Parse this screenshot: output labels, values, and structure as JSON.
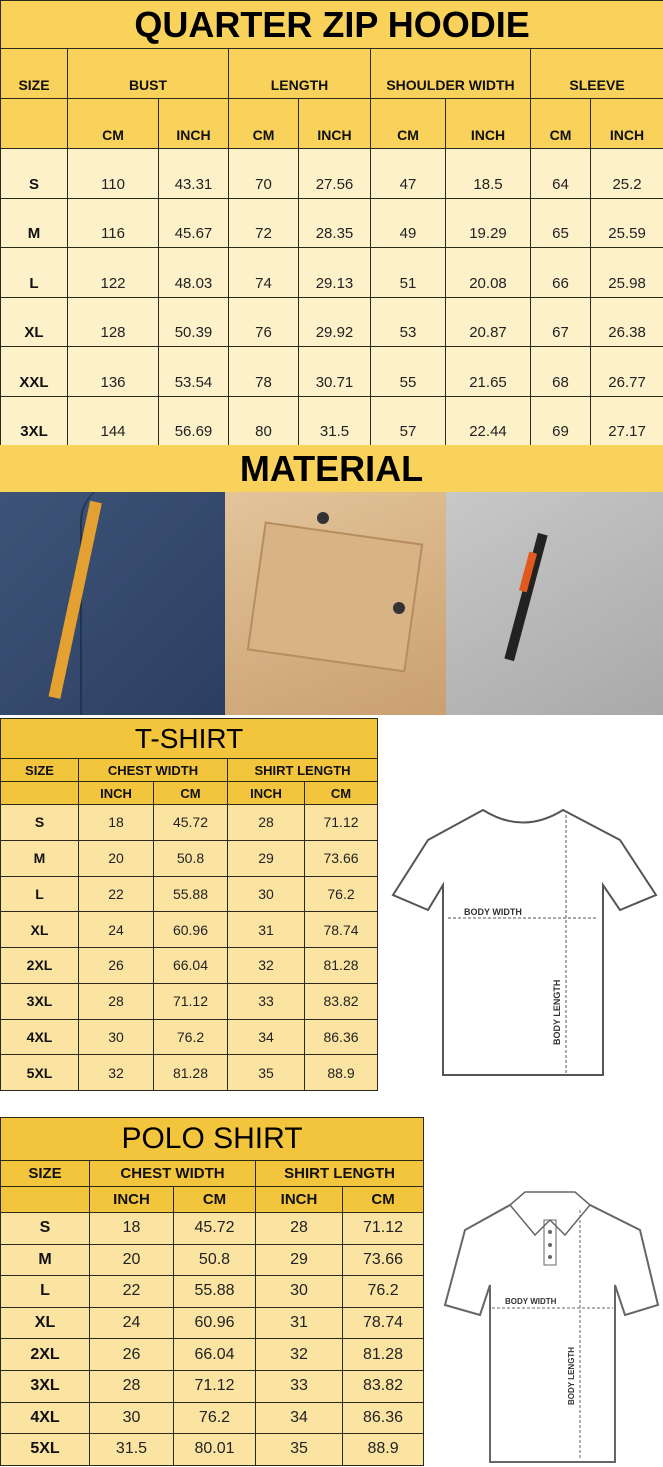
{
  "hoodie": {
    "title": "QUARTER ZIP HOODIE",
    "size_label": "SIZE",
    "groups": [
      "BUST",
      "LENGTH",
      "SHOULDER WIDTH",
      "SLEEVE"
    ],
    "units": [
      "CM",
      "INCH",
      "CM",
      "INCH",
      "CM",
      "INCH",
      "CM",
      "INCH"
    ],
    "rows": [
      [
        "S",
        "110",
        "43.31",
        "70",
        "27.56",
        "47",
        "18.5",
        "64",
        "25.2"
      ],
      [
        "M",
        "116",
        "45.67",
        "72",
        "28.35",
        "49",
        "19.29",
        "65",
        "25.59"
      ],
      [
        "L",
        "122",
        "48.03",
        "74",
        "29.13",
        "51",
        "20.08",
        "66",
        "25.98"
      ],
      [
        "XL",
        "128",
        "50.39",
        "76",
        "29.92",
        "53",
        "20.87",
        "67",
        "26.38"
      ],
      [
        "XXL",
        "136",
        "53.54",
        "78",
        "30.71",
        "55",
        "21.65",
        "68",
        "26.77"
      ],
      [
        "3XL",
        "144",
        "56.69",
        "80",
        "31.5",
        "57",
        "22.44",
        "69",
        "27.17"
      ]
    ]
  },
  "material": {
    "title": "MATERIAL",
    "photos": [
      "navy-fabric-with-orange-strap",
      "khaki-fabric-with-flap-pocket",
      "grey-fabric-with-zip-pocket"
    ]
  },
  "tshirt": {
    "title": "T-SHIRT",
    "size_label": "SIZE",
    "groups": [
      "CHEST WIDTH",
      "SHIRT LENGTH"
    ],
    "units": [
      "INCH",
      "CM",
      "INCH",
      "CM"
    ],
    "rows": [
      [
        "S",
        "18",
        "45.72",
        "28",
        "71.12"
      ],
      [
        "M",
        "20",
        "50.8",
        "29",
        "73.66"
      ],
      [
        "L",
        "22",
        "55.88",
        "30",
        "76.2"
      ],
      [
        "XL",
        "24",
        "60.96",
        "31",
        "78.74"
      ],
      [
        "2XL",
        "26",
        "66.04",
        "32",
        "81.28"
      ],
      [
        "3XL",
        "28",
        "71.12",
        "33",
        "83.82"
      ],
      [
        "4XL",
        "30",
        "76.2",
        "34",
        "86.36"
      ],
      [
        "5XL",
        "32",
        "81.28",
        "35",
        "88.9"
      ]
    ],
    "diagram": {
      "width_label": "BODY WIDTH",
      "length_label": "BODY LENGTH"
    }
  },
  "polo": {
    "title": "POLO SHIRT",
    "size_label": "SIZE",
    "groups": [
      "CHEST WIDTH",
      "SHIRT LENGTH"
    ],
    "units": [
      "INCH",
      "CM",
      "INCH",
      "CM"
    ],
    "rows": [
      [
        "S",
        "18",
        "45.72",
        "28",
        "71.12"
      ],
      [
        "M",
        "20",
        "50.8",
        "29",
        "73.66"
      ],
      [
        "L",
        "22",
        "55.88",
        "30",
        "76.2"
      ],
      [
        "XL",
        "24",
        "60.96",
        "31",
        "78.74"
      ],
      [
        "2XL",
        "26",
        "66.04",
        "32",
        "81.28"
      ],
      [
        "3XL",
        "28",
        "71.12",
        "33",
        "83.82"
      ],
      [
        "4XL",
        "30",
        "76.2",
        "34",
        "86.36"
      ],
      [
        "5XL",
        "31.5",
        "80.01",
        "35",
        "88.9"
      ]
    ],
    "diagram": {
      "width_label": "BODY WIDTH",
      "length_label": "BODY LENGTH"
    }
  },
  "colors": {
    "header": "#f8d25a",
    "hoodie_body": "#fdf1c9",
    "shirt_header": "#f3c53c",
    "shirt_body": "#fbe4a2"
  }
}
